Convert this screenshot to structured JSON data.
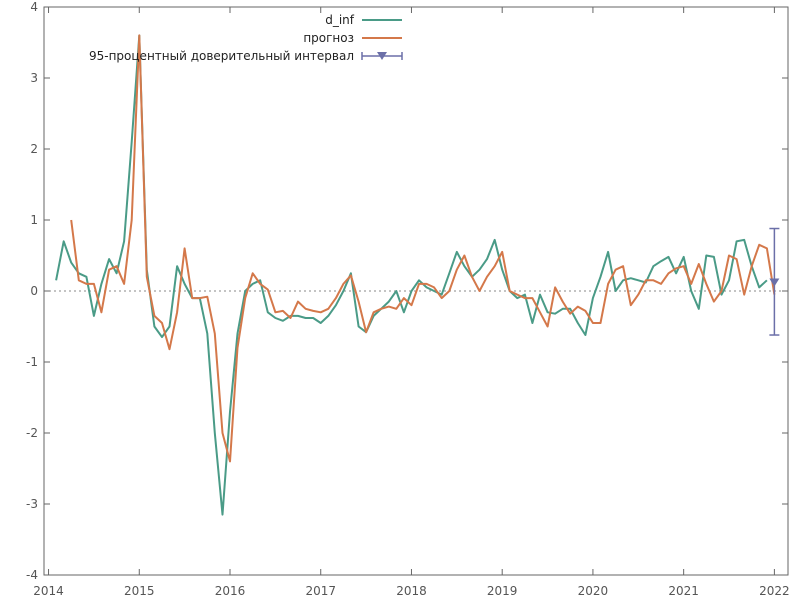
{
  "chart_data": {
    "type": "line",
    "xlim": [
      2013.95,
      2022.15
    ],
    "ylim": [
      -4,
      4
    ],
    "x_ticks": [
      "2014",
      "2015",
      "2016",
      "2017",
      "2018",
      "2019",
      "2020",
      "2021",
      "2022"
    ],
    "y_ticks": [
      "-4",
      "-3",
      "-2",
      "-1",
      "0",
      "1",
      "2",
      "3",
      "4"
    ],
    "zero_line": 0,
    "legend": {
      "placement": "top-center",
      "items": [
        {
          "label": "d_inf",
          "color": "#4a9b87",
          "kind": "line"
        },
        {
          "label": "прогноз",
          "color": "#d4784a",
          "kind": "line"
        },
        {
          "label": "95-процентный доверительный интервал",
          "color": "#6b6fa8",
          "kind": "errorbar"
        }
      ]
    },
    "series": [
      {
        "name": "d_inf",
        "color": "#4a9b87",
        "x": [
          2014.083,
          2014.167,
          2014.25,
          2014.333,
          2014.417,
          2014.5,
          2014.583,
          2014.667,
          2014.75,
          2014.833,
          2014.917,
          2015.0,
          2015.083,
          2015.167,
          2015.25,
          2015.333,
          2015.417,
          2015.5,
          2015.583,
          2015.667,
          2015.75,
          2015.833,
          2015.917,
          2016.0,
          2016.083,
          2016.167,
          2016.25,
          2016.333,
          2016.417,
          2016.5,
          2016.583,
          2016.667,
          2016.75,
          2016.833,
          2016.917,
          2017.0,
          2017.083,
          2017.167,
          2017.25,
          2017.333,
          2017.417,
          2017.5,
          2017.583,
          2017.667,
          2017.75,
          2017.833,
          2017.917,
          2018.0,
          2018.083,
          2018.167,
          2018.25,
          2018.333,
          2018.417,
          2018.5,
          2018.583,
          2018.667,
          2018.75,
          2018.833,
          2018.917,
          2019.0,
          2019.083,
          2019.167,
          2019.25,
          2019.333,
          2019.417,
          2019.5,
          2019.583,
          2019.667,
          2019.75,
          2019.833,
          2019.917,
          2020.0,
          2020.083,
          2020.167,
          2020.25,
          2020.333,
          2020.417,
          2020.5,
          2020.583,
          2020.667,
          2020.75,
          2020.833,
          2020.917,
          2021.0,
          2021.083,
          2021.167,
          2021.25,
          2021.333,
          2021.417,
          2021.5,
          2021.583,
          2021.667,
          2021.75,
          2021.833,
          2021.917
        ],
        "values": [
          0.15,
          0.7,
          0.4,
          0.25,
          0.2,
          -0.35,
          0.1,
          0.45,
          0.25,
          0.7,
          2.1,
          3.6,
          0.3,
          -0.5,
          -0.65,
          -0.5,
          0.35,
          0.1,
          -0.1,
          -0.1,
          -0.6,
          -2.0,
          -3.15,
          -1.7,
          -0.6,
          0.0,
          0.1,
          0.15,
          -0.3,
          -0.38,
          -0.42,
          -0.35,
          -0.35,
          -0.38,
          -0.38,
          -0.45,
          -0.35,
          -0.2,
          0.0,
          0.25,
          -0.5,
          -0.58,
          -0.35,
          -0.25,
          -0.15,
          0.0,
          -0.3,
          0.0,
          0.15,
          0.05,
          0.0,
          -0.05,
          0.25,
          0.55,
          0.35,
          0.2,
          0.3,
          0.45,
          0.72,
          0.3,
          0.0,
          -0.1,
          -0.05,
          -0.45,
          -0.05,
          -0.3,
          -0.32,
          -0.25,
          -0.25,
          -0.45,
          -0.62,
          -0.1,
          0.2,
          0.55,
          0.0,
          0.15,
          0.18,
          0.15,
          0.12,
          0.35,
          0.42,
          0.48,
          0.25,
          0.48,
          0.0,
          -0.25,
          0.5,
          0.48,
          -0.05,
          0.15,
          0.7,
          0.72,
          0.35,
          0.05,
          0.15
        ],
        "dashed_last": false
      },
      {
        "name": "прогноз",
        "color": "#d4784a",
        "x": [
          2014.25,
          2014.333,
          2014.417,
          2014.5,
          2014.583,
          2014.667,
          2014.75,
          2014.833,
          2014.917,
          2015.0,
          2015.083,
          2015.167,
          2015.25,
          2015.333,
          2015.417,
          2015.5,
          2015.583,
          2015.667,
          2015.75,
          2015.833,
          2015.917,
          2016.0,
          2016.083,
          2016.167,
          2016.25,
          2016.333,
          2016.417,
          2016.5,
          2016.583,
          2016.667,
          2016.75,
          2016.833,
          2016.917,
          2017.0,
          2017.083,
          2017.167,
          2017.25,
          2017.333,
          2017.417,
          2017.5,
          2017.583,
          2017.667,
          2017.75,
          2017.833,
          2017.917,
          2018.0,
          2018.083,
          2018.167,
          2018.25,
          2018.333,
          2018.417,
          2018.5,
          2018.583,
          2018.667,
          2018.75,
          2018.833,
          2018.917,
          2019.0,
          2019.083,
          2019.167,
          2019.25,
          2019.333,
          2019.417,
          2019.5,
          2019.583,
          2019.667,
          2019.75,
          2019.833,
          2019.917,
          2020.0,
          2020.083,
          2020.167,
          2020.25,
          2020.333,
          2020.417,
          2020.5,
          2020.583,
          2020.667,
          2020.75,
          2020.833,
          2020.917,
          2021.0,
          2021.083,
          2021.167,
          2021.25,
          2021.333,
          2021.417,
          2021.5,
          2021.583,
          2021.667,
          2021.75,
          2021.833,
          2021.917,
          2022.0
        ],
        "values": [
          1.0,
          0.15,
          0.1,
          0.1,
          -0.3,
          0.3,
          0.35,
          0.1,
          1.0,
          3.6,
          0.2,
          -0.35,
          -0.45,
          -0.82,
          -0.3,
          0.6,
          -0.1,
          -0.1,
          -0.08,
          -0.6,
          -2.0,
          -2.4,
          -0.8,
          -0.1,
          0.25,
          0.1,
          0.02,
          -0.3,
          -0.28,
          -0.38,
          -0.15,
          -0.25,
          -0.28,
          -0.3,
          -0.25,
          -0.1,
          0.1,
          0.22,
          -0.15,
          -0.58,
          -0.3,
          -0.25,
          -0.22,
          -0.25,
          -0.1,
          -0.2,
          0.1,
          0.1,
          0.05,
          -0.1,
          0.0,
          0.3,
          0.5,
          0.2,
          0.0,
          0.2,
          0.35,
          0.55,
          0.0,
          -0.05,
          -0.1,
          -0.1,
          -0.3,
          -0.5,
          0.05,
          -0.15,
          -0.32,
          -0.22,
          -0.28,
          -0.45,
          -0.45,
          0.1,
          0.3,
          0.35,
          -0.2,
          -0.05,
          0.15,
          0.15,
          0.1,
          0.25,
          0.32,
          0.35,
          0.1,
          0.38,
          0.1,
          -0.15,
          0.0,
          0.5,
          0.45,
          -0.05,
          0.35,
          0.65,
          0.6,
          -0.05
        ],
        "dashed_last": false
      }
    ],
    "interval": {
      "x": 2022.0,
      "center": 0.12,
      "low": -0.62,
      "high": 0.88,
      "color": "#6b6fa8"
    }
  }
}
